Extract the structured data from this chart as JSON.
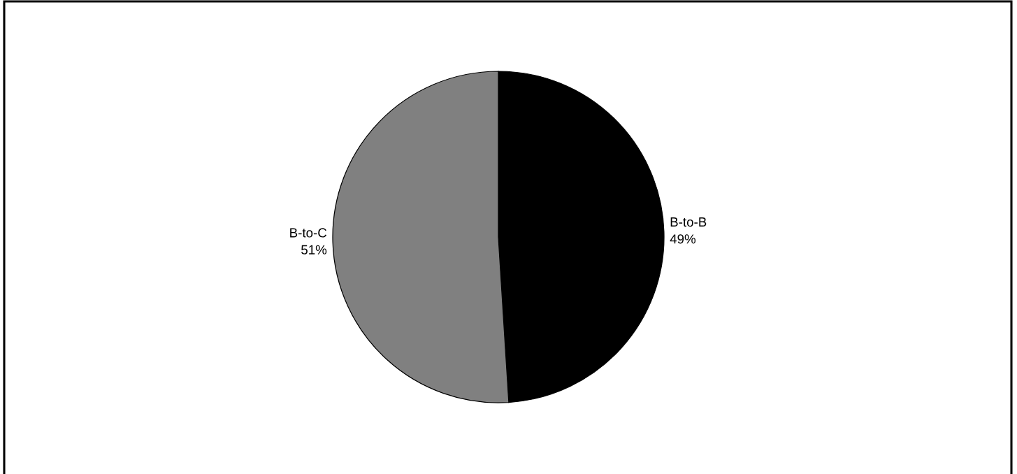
{
  "chart_data": {
    "type": "pie",
    "categories": [
      "B-to-B",
      "B-to-C"
    ],
    "values": [
      49,
      51
    ],
    "colors": [
      "#000000",
      "#808080"
    ],
    "value_labels": [
      "49%",
      "51%"
    ]
  }
}
